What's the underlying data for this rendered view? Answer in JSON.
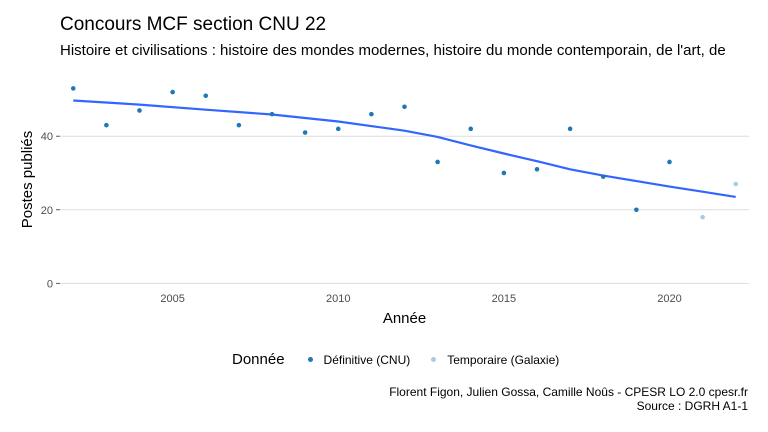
{
  "title": "Concours MCF section CNU 22",
  "subtitle": "Histoire et civilisations : histoire des mondes modernes, histoire du monde contemporain, de l'art, de",
  "legend": {
    "title": "Donnée",
    "items": [
      {
        "label": "Définitive (CNU)",
        "color": "#1f78b4"
      },
      {
        "label": "Temporaire (Galaxie)",
        "color": "#a6cee3"
      }
    ]
  },
  "caption": {
    "line1": "Florent Figon, Julien Gossa, Camille Noûs - CPESR LO 2.0 cpesr.fr",
    "line2": "Source : DGRH A1-1"
  },
  "colors": {
    "grid": "#dedede",
    "trend": "#3366ff",
    "axis_text": "#4d4d4d"
  },
  "chart_data": {
    "type": "scatter",
    "xlabel": "Année",
    "ylabel": "Postes publiés",
    "xlim": [
      2001.6,
      2022.4
    ],
    "ylim": [
      -1,
      58
    ],
    "x_ticks": [
      2005,
      2010,
      2015,
      2020
    ],
    "y_ticks": [
      0,
      20,
      40
    ],
    "grid": true,
    "legend_position": "bottom",
    "series": [
      {
        "name": "Définitive (CNU)",
        "color": "#1f78b4",
        "points": [
          {
            "x": 2002,
            "y": 53
          },
          {
            "x": 2003,
            "y": 43
          },
          {
            "x": 2004,
            "y": 47
          },
          {
            "x": 2005,
            "y": 52
          },
          {
            "x": 2006,
            "y": 51
          },
          {
            "x": 2007,
            "y": 43
          },
          {
            "x": 2008,
            "y": 46
          },
          {
            "x": 2009,
            "y": 41
          },
          {
            "x": 2010,
            "y": 42
          },
          {
            "x": 2011,
            "y": 46
          },
          {
            "x": 2012,
            "y": 48
          },
          {
            "x": 2013,
            "y": 33
          },
          {
            "x": 2014,
            "y": 42
          },
          {
            "x": 2015,
            "y": 30
          },
          {
            "x": 2016,
            "y": 31
          },
          {
            "x": 2017,
            "y": 42
          },
          {
            "x": 2018,
            "y": 29
          },
          {
            "x": 2019,
            "y": 20
          },
          {
            "x": 2020,
            "y": 33
          }
        ]
      },
      {
        "name": "Temporaire (Galaxie)",
        "color": "#a6cee3",
        "points": [
          {
            "x": 2021,
            "y": 18
          },
          {
            "x": 2022,
            "y": 27
          }
        ]
      }
    ],
    "trend": {
      "type": "loess",
      "color": "#3366ff",
      "points": [
        {
          "x": 2002,
          "y": 49.7
        },
        {
          "x": 2004,
          "y": 48.6
        },
        {
          "x": 2006,
          "y": 47.2
        },
        {
          "x": 2008,
          "y": 45.9
        },
        {
          "x": 2010,
          "y": 44.0
        },
        {
          "x": 2012,
          "y": 41.5
        },
        {
          "x": 2013,
          "y": 39.8
        },
        {
          "x": 2014,
          "y": 37.5
        },
        {
          "x": 2015,
          "y": 35.3
        },
        {
          "x": 2016,
          "y": 33.2
        },
        {
          "x": 2017,
          "y": 31.0
        },
        {
          "x": 2018,
          "y": 29.3
        },
        {
          "x": 2019,
          "y": 27.8
        },
        {
          "x": 2020,
          "y": 26.3
        },
        {
          "x": 2021,
          "y": 24.9
        },
        {
          "x": 2022,
          "y": 23.5
        }
      ]
    }
  }
}
